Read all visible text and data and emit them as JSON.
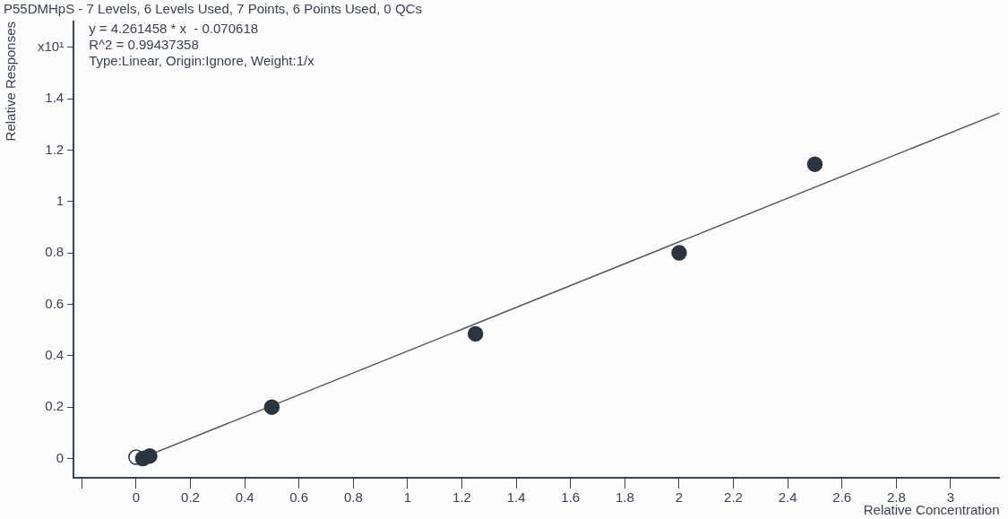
{
  "chart_data": {
    "type": "scatter",
    "title": "P55DMHpS - 7 Levels, 6 Levels Used, 7 Points, 6 Points Used, 0 QCs",
    "xlabel": "Relative Concentration",
    "ylabel": "Relative Responses",
    "annotations": [
      "y = 4.261458 * x  - 0.070618",
      "R^2 = 0.99437358",
      "Type:Linear, Origin:Ignore, Weight:1/x"
    ],
    "series": [
      {
        "color": "#2d3440",
        "x": [
          0.025,
          0.05,
          0.5,
          1.25,
          2,
          2.5
        ],
        "values": [
          0.0,
          0.01,
          0.2,
          0.485,
          0.8,
          1.145
        ]
      },
      {
        "color": "#ffffff",
        "x": [
          0
        ],
        "values": [
          0.005
        ]
      },
      {
        "type": "line",
        "color": "#555a63",
        "marker": "none",
        "x": [
          0.025,
          3.18
        ],
        "values": [
          0.0036,
          1.344
        ]
      }
    ],
    "marker": "circle",
    "grid": false,
    "legend": false,
    "xlim": [
      -0.23,
      3.18
    ],
    "xticks": [
      {
        "value": -0.2,
        "label": null
      },
      0,
      0.2,
      0.4,
      0.6,
      0.8,
      1,
      1.2,
      1.4,
      1.6,
      1.8,
      2,
      2.2,
      2.4,
      2.6,
      2.8,
      3
    ],
    "ylim": [
      -0.075,
      1.7
    ],
    "yticks": [
      0,
      0.2,
      0.4,
      0.6,
      0.8,
      1,
      1.2,
      1.4,
      {
        "value": 1.6,
        "label": "x10¹"
      }
    ]
  }
}
